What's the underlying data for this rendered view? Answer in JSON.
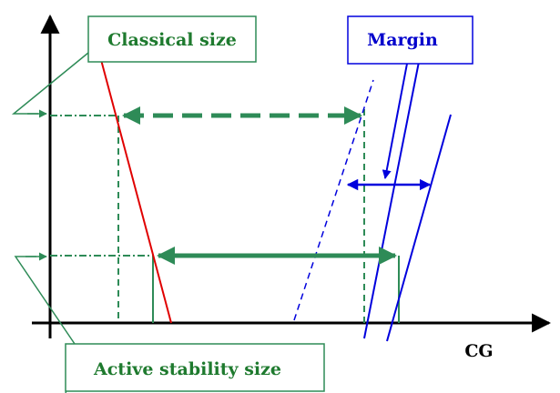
{
  "labels": {
    "classical": "Classical size",
    "margin": "Margin",
    "active": "Active stability size",
    "axis_x": "CG"
  },
  "colors": {
    "axis": "#000000",
    "green": "#2e8b57",
    "red": "#e00000",
    "blue": "#0000dd",
    "green_text": "#1e7a2e",
    "blue_text": "#0000cc"
  }
}
